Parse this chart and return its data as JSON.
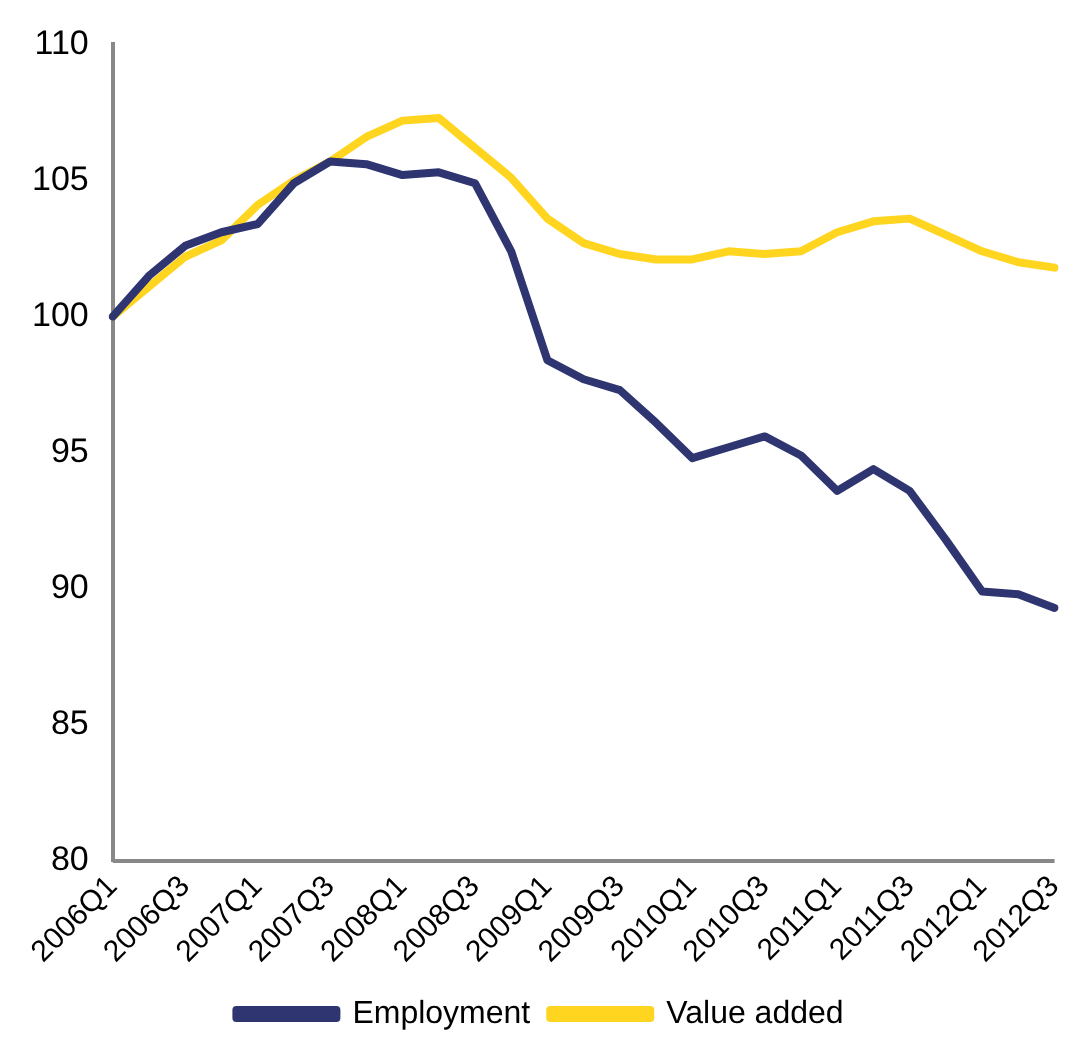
{
  "chart_data": {
    "type": "line",
    "categories": [
      "2006Q1",
      null,
      "2006Q3",
      null,
      "2007Q1",
      null,
      "2007Q3",
      null,
      "2008Q1",
      null,
      "2008Q3",
      null,
      "2009Q1",
      null,
      "2009Q3",
      null,
      "2010Q1",
      null,
      "2010Q3",
      null,
      "2011Q1",
      null,
      "2011Q3",
      null,
      "2012Q1",
      null,
      "2012Q3"
    ],
    "series": [
      {
        "name": "Employment",
        "color": "#2e3570",
        "values": [
          100,
          101.5,
          102.6,
          103.1,
          103.4,
          104.9,
          105.7,
          105.6,
          105.2,
          105.3,
          104.9,
          102.4,
          98.4,
          97.7,
          97.3,
          96.1,
          94.8,
          95.2,
          95.6,
          94.9,
          93.6,
          94.4,
          93.6,
          91.8,
          89.9,
          89.8,
          89.3
        ]
      },
      {
        "name": "Value added",
        "color": "#ffd51f",
        "values": [
          100,
          101.1,
          102.2,
          102.8,
          104.1,
          105.0,
          105.7,
          106.6,
          107.2,
          107.3,
          106.2,
          105.1,
          103.6,
          102.7,
          102.3,
          102.1,
          102.1,
          102.4,
          102.3,
          102.4,
          103.1,
          103.5,
          103.6,
          103.0,
          102.4,
          102.0,
          101.8
        ]
      }
    ],
    "ylim": [
      80,
      110
    ],
    "yticks": [
      80,
      85,
      90,
      95,
      100,
      105,
      110
    ],
    "grid": false,
    "legend": "bottom",
    "marker": "none",
    "line_style": "solid"
  }
}
